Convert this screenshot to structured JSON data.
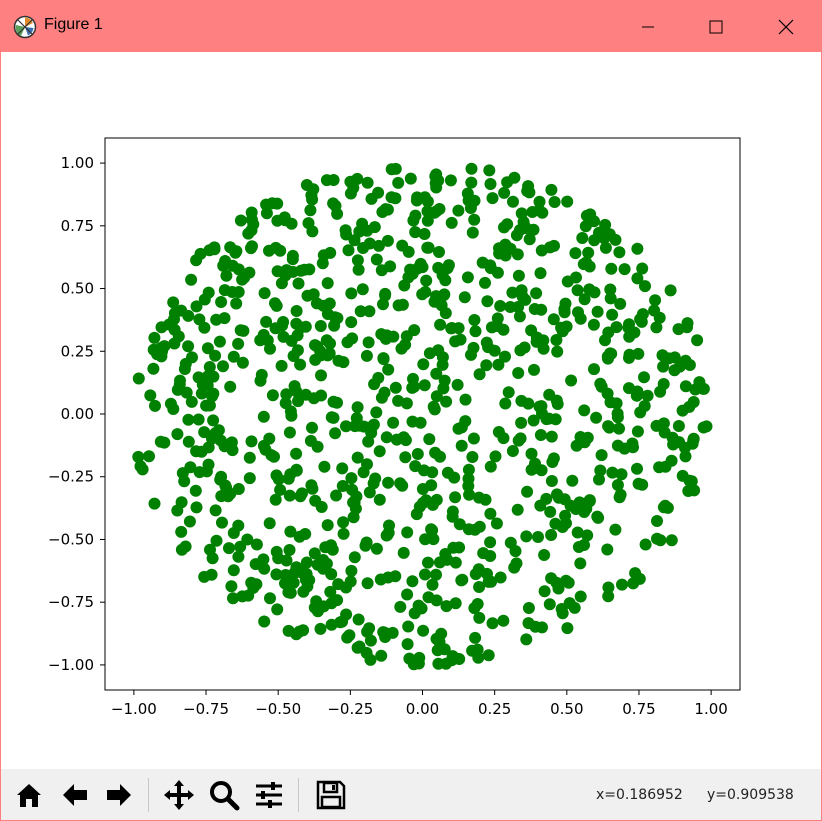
{
  "window": {
    "title": "Figure 1",
    "titlebar_color": "#ff8080"
  },
  "window_controls": {
    "minimize_icon": "minimize-icon",
    "maximize_icon": "maximize-icon",
    "close_icon": "close-icon"
  },
  "toolbar": {
    "buttons": [
      "home-icon",
      "back-arrow-icon",
      "forward-arrow-icon",
      "pan-icon",
      "zoom-icon",
      "configure-subplots-icon",
      "save-icon"
    ]
  },
  "status": {
    "x_readout": "x=0.186952",
    "y_readout": "y=0.909538"
  },
  "chart_data": {
    "type": "scatter",
    "title": "",
    "xlabel": "",
    "ylabel": "",
    "xlim": [
      -1.1,
      1.1
    ],
    "ylim": [
      -1.1,
      1.1
    ],
    "xticks": [
      -1.0,
      -0.75,
      -0.5,
      -0.25,
      0.0,
      0.25,
      0.5,
      0.75,
      1.0
    ],
    "yticks": [
      -1.0,
      -0.75,
      -0.5,
      -0.25,
      0.0,
      0.25,
      0.5,
      0.75,
      1.0
    ],
    "xtick_labels": [
      "−1.00",
      "−0.75",
      "−0.50",
      "−0.25",
      "0.00",
      "0.25",
      "0.50",
      "0.75",
      "1.00"
    ],
    "ytick_labels": [
      "−1.00",
      "−0.75",
      "−0.50",
      "−0.25",
      "0.00",
      "0.25",
      "0.50",
      "0.75",
      "1.00"
    ],
    "grid": false,
    "marker_color": "#008000",
    "distribution": "points uniformly distributed inside the unit circle",
    "point_count": 1000
  }
}
